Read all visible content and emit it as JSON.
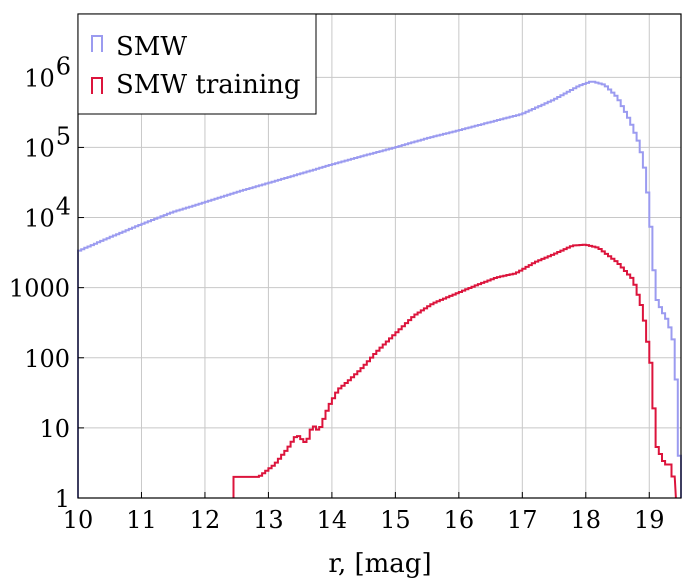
{
  "chart_data": {
    "type": "histogram",
    "title": "",
    "xlabel": "r, [mag]",
    "ylabel": "",
    "xlim": [
      10,
      19.5
    ],
    "ylim": [
      1,
      8000000
    ],
    "y_scale": "log",
    "grid": true,
    "legend_position": "top-left",
    "x_ticks": [
      {
        "value": 10,
        "label": "10"
      },
      {
        "value": 11,
        "label": "11"
      },
      {
        "value": 12,
        "label": "12"
      },
      {
        "value": 13,
        "label": "13"
      },
      {
        "value": 14,
        "label": "14"
      },
      {
        "value": 15,
        "label": "15"
      },
      {
        "value": 16,
        "label": "16"
      },
      {
        "value": 17,
        "label": "17"
      },
      {
        "value": 18,
        "label": "18"
      },
      {
        "value": 19,
        "label": "19"
      }
    ],
    "y_ticks": [
      {
        "value": 1,
        "base": "1",
        "exp": ""
      },
      {
        "value": 10,
        "base": "10",
        "exp": ""
      },
      {
        "value": 100,
        "base": "100",
        "exp": ""
      },
      {
        "value": 1000,
        "base": "1000",
        "exp": ""
      },
      {
        "value": 10000,
        "base": "10",
        "exp": "4"
      },
      {
        "value": 100000,
        "base": "10",
        "exp": "5"
      },
      {
        "value": 1000000,
        "base": "10",
        "exp": "6"
      }
    ],
    "series": [
      {
        "name": "SMW",
        "color": "#9b9bf0",
        "points": [
          [
            10.0,
            3300
          ],
          [
            10.5,
            5200
          ],
          [
            11.0,
            8000
          ],
          [
            11.5,
            12000
          ],
          [
            12.0,
            16500
          ],
          [
            12.5,
            23000
          ],
          [
            13.0,
            31000
          ],
          [
            13.5,
            42000
          ],
          [
            14.0,
            57000
          ],
          [
            14.5,
            76000
          ],
          [
            15.0,
            100000
          ],
          [
            15.5,
            135000
          ],
          [
            16.0,
            175000
          ],
          [
            16.5,
            230000
          ],
          [
            17.0,
            300000
          ],
          [
            17.5,
            480000
          ],
          [
            17.9,
            760000
          ],
          [
            18.1,
            880000
          ],
          [
            18.3,
            780000
          ],
          [
            18.5,
            520000
          ],
          [
            18.7,
            240000
          ],
          [
            18.85,
            110000
          ],
          [
            18.95,
            40000
          ],
          [
            19.05,
            4200
          ],
          [
            19.1,
            750
          ],
          [
            19.2,
            470
          ],
          [
            19.3,
            330
          ],
          [
            19.4,
            150
          ],
          [
            19.45,
            16
          ],
          [
            19.5,
            1
          ]
        ]
      },
      {
        "name": "SMW training",
        "color": "#dc143c",
        "points": [
          [
            12.45,
            2
          ],
          [
            12.75,
            2
          ],
          [
            12.85,
            2
          ],
          [
            13.1,
            3
          ],
          [
            13.3,
            5
          ],
          [
            13.45,
            8
          ],
          [
            13.6,
            6
          ],
          [
            13.7,
            11
          ],
          [
            13.8,
            9
          ],
          [
            13.95,
            20
          ],
          [
            14.1,
            35
          ],
          [
            14.3,
            50
          ],
          [
            14.5,
            75
          ],
          [
            14.7,
            120
          ],
          [
            15.0,
            220
          ],
          [
            15.3,
            400
          ],
          [
            15.6,
            600
          ],
          [
            16.0,
            850
          ],
          [
            16.3,
            1100
          ],
          [
            16.6,
            1400
          ],
          [
            16.9,
            1600
          ],
          [
            17.2,
            2300
          ],
          [
            17.5,
            3000
          ],
          [
            17.8,
            4000
          ],
          [
            18.0,
            4100
          ],
          [
            18.2,
            3700
          ],
          [
            18.5,
            2300
          ],
          [
            18.75,
            1300
          ],
          [
            18.9,
            480
          ],
          [
            19.05,
            60
          ],
          [
            19.1,
            6
          ],
          [
            19.25,
            3
          ],
          [
            19.35,
            3
          ],
          [
            19.42,
            1
          ]
        ]
      }
    ]
  }
}
